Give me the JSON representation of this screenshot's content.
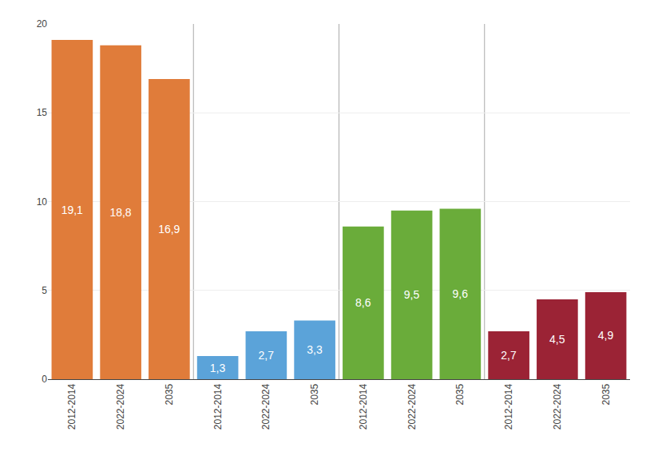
{
  "chart_data": {
    "type": "bar",
    "categories": [
      "2012-2014",
      "2022-2024",
      "2035",
      "2012-2014",
      "2022-2024",
      "2035",
      "2012-2014",
      "2022-2024",
      "2035",
      "2012-2014",
      "2022-2024",
      "2035"
    ],
    "values": [
      19.1,
      18.8,
      16.9,
      1.3,
      2.7,
      3.3,
      8.6,
      9.5,
      9.6,
      2.7,
      4.5,
      4.9
    ],
    "value_labels": [
      "19,1",
      "18,8",
      "16,9",
      "1,3",
      "2,7",
      "3,3",
      "8,6",
      "9,5",
      "9,6",
      "2,7",
      "4,5",
      "4,9"
    ],
    "colors": [
      "#E07C3A",
      "#E07C3A",
      "#E07C3A",
      "#5BA3D9",
      "#5BA3D9",
      "#5BA3D9",
      "#6AAC3A",
      "#6AAC3A",
      "#6AAC3A",
      "#9B2335",
      "#9B2335",
      "#9B2335"
    ],
    "data_labels": true,
    "ylim": [
      0,
      20
    ],
    "yticks": [
      0,
      5,
      10,
      15,
      20
    ],
    "grid": true
  }
}
